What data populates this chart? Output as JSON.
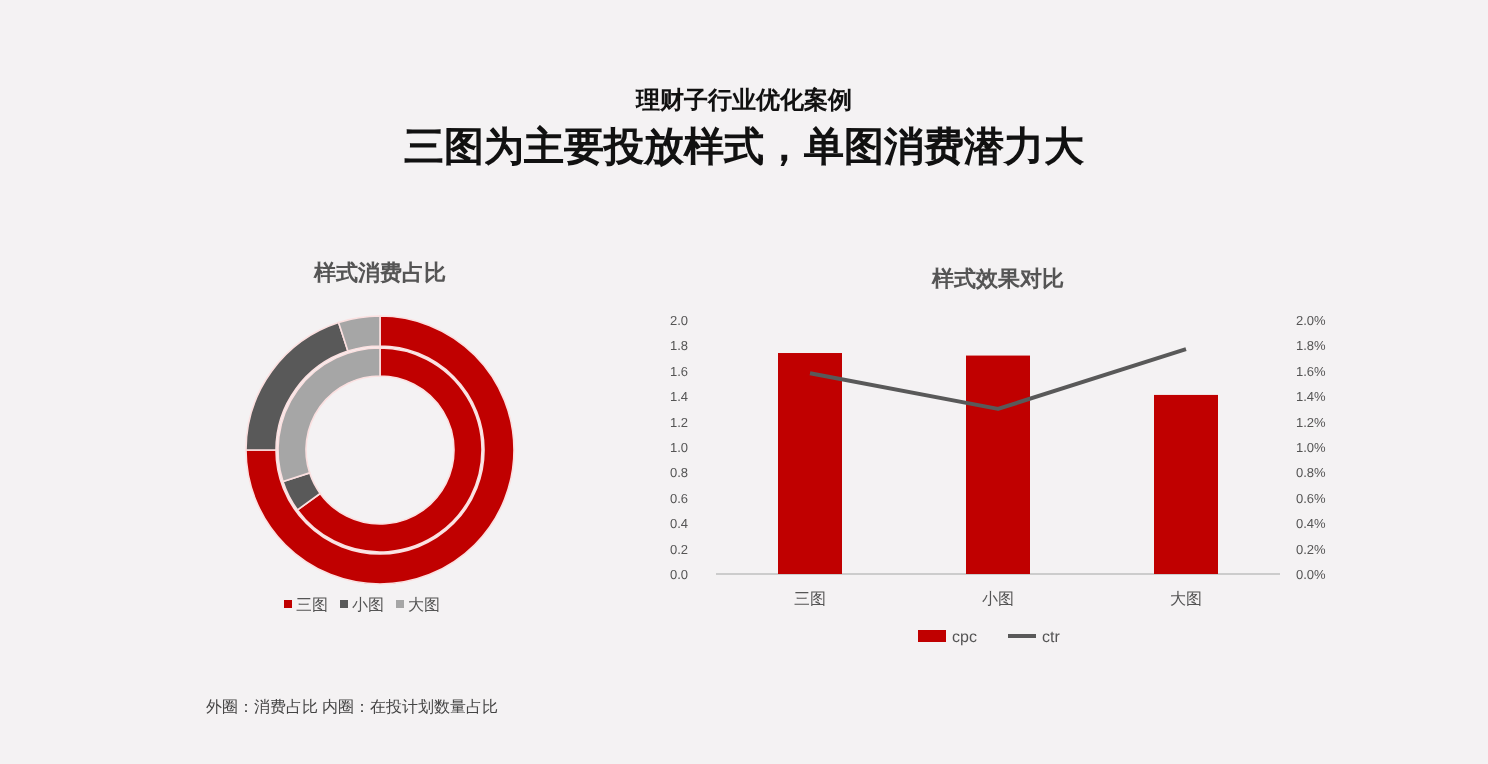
{
  "chart_data": [
    {
      "type": "other",
      "title": "理财子行业优化案例",
      "subtitle": "三图为主要投放样式，单图消费潜力大"
    },
    {
      "type": "donut",
      "title": "样式消费占比",
      "categories": [
        "三图",
        "小图",
        "大图"
      ],
      "colors": [
        "#c00000",
        "#595959",
        "#a6a6a6"
      ],
      "legend": "bottom",
      "series": [
        {
          "values": [
            75,
            20,
            5
          ]
        },
        {
          "values": [
            65,
            5,
            30
          ]
        }
      ],
      "annotations": [
        "外圈：消费占比   内圈：在投计划数量占比"
      ]
    },
    {
      "type": "bar",
      "title": "样式效果对比",
      "categories": [
        "三图",
        "小图",
        "大图"
      ],
      "legend": "bottom",
      "grid": false,
      "marker": "none",
      "line_style": "solid",
      "ylim": [
        0,
        2.0
      ],
      "yticks": [
        {
          "value": 0,
          "label": "0.0"
        },
        {
          "value": 0.2,
          "label": "0.2"
        },
        {
          "value": 0.4,
          "label": "0.4"
        },
        {
          "value": 0.6,
          "label": "0.6"
        },
        {
          "value": 0.8,
          "label": "0.8"
        },
        {
          "value": 1.0,
          "label": "1.0"
        },
        {
          "value": 1.2,
          "label": "1.2"
        },
        {
          "value": 1.4,
          "label": "1.4"
        },
        {
          "value": 1.6,
          "label": "1.6"
        },
        {
          "value": 1.8,
          "label": "1.8"
        },
        {
          "value": 2.0,
          "label": "2.0"
        }
      ],
      "y2lim": [
        0,
        2.0
      ],
      "y2ticks": [
        {
          "value": 0,
          "label": "0.0%"
        },
        {
          "value": 0.2,
          "label": "0.2%"
        },
        {
          "value": 0.4,
          "label": "0.4%"
        },
        {
          "value": 0.6,
          "label": "0.6%"
        },
        {
          "value": 0.8,
          "label": "0.8%"
        },
        {
          "value": 1.0,
          "label": "1.0%"
        },
        {
          "value": 1.2,
          "label": "1.2%"
        },
        {
          "value": 1.4,
          "label": "1.4%"
        },
        {
          "value": 1.6,
          "label": "1.6%"
        },
        {
          "value": 1.8,
          "label": "1.8%"
        },
        {
          "value": 2.0,
          "label": "2.0%"
        }
      ],
      "series": [
        {
          "name": "cpc",
          "type": "bar",
          "color": "#c00000",
          "values": [
            1.74,
            1.72,
            1.41
          ]
        },
        {
          "name": "ctr",
          "type": "line",
          "axis": "y2",
          "color": "#595959",
          "values": [
            1.58,
            1.3,
            1.77
          ]
        }
      ]
    }
  ]
}
